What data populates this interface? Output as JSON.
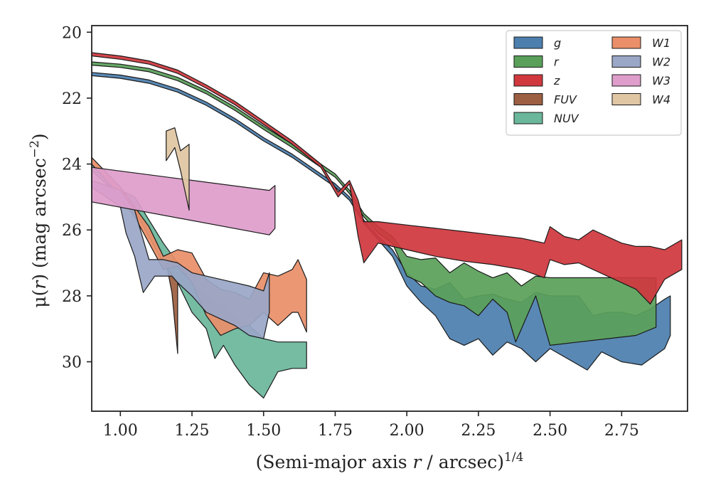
{
  "chart_data": {
    "type": "area",
    "xlabel": "(Semi-major axis r / arcsec)^1/4",
    "ylabel": "μ(r) (mag arcsec⁻²)",
    "xlabel_parts": {
      "before": "(Semi-major axis ",
      "var": "r",
      "after": " / arcsec)",
      "sup": "1/4"
    },
    "ylabel_parts": {
      "mu": "μ(",
      "var": "r",
      "after": ") (mag arcsec",
      "sup": "−2",
      "close": ")"
    },
    "xlim": [
      0.9,
      2.98
    ],
    "ylim": [
      31.5,
      19.8
    ],
    "y_inverted": true,
    "xticks": [
      1.0,
      1.25,
      1.5,
      1.75,
      2.0,
      2.25,
      2.5,
      2.75
    ],
    "xtick_labels": [
      "1.00",
      "1.25",
      "1.50",
      "1.75",
      "2.00",
      "2.25",
      "2.50",
      "2.75"
    ],
    "yticks": [
      20,
      22,
      24,
      26,
      28,
      30
    ],
    "ytick_labels": [
      "20",
      "22",
      "24",
      "26",
      "28",
      "30"
    ],
    "grid": false,
    "legend_position": "top-right",
    "legend_columns": 2,
    "series": [
      {
        "name": "g",
        "color": "#4c7fae",
        "upper": [
          [
            0.9,
            21.22
          ],
          [
            1.0,
            21.3
          ],
          [
            1.1,
            21.45
          ],
          [
            1.2,
            21.72
          ],
          [
            1.3,
            22.12
          ],
          [
            1.4,
            22.62
          ],
          [
            1.5,
            23.2
          ],
          [
            1.6,
            23.7
          ],
          [
            1.7,
            24.3
          ],
          [
            1.75,
            24.6
          ],
          [
            1.8,
            25.0
          ],
          [
            1.85,
            25.7
          ],
          [
            1.9,
            26.2
          ],
          [
            1.95,
            26.6
          ],
          [
            2.0,
            27.3
          ],
          [
            2.05,
            27.7
          ],
          [
            2.1,
            27.8
          ],
          [
            2.15,
            27.6
          ],
          [
            2.2,
            28.1
          ],
          [
            2.25,
            28.0
          ],
          [
            2.3,
            27.95
          ],
          [
            2.35,
            28.1
          ],
          [
            2.4,
            28.2
          ],
          [
            2.45,
            27.9
          ],
          [
            2.5,
            28.0
          ],
          [
            2.6,
            28.0
          ],
          [
            2.65,
            28.6
          ],
          [
            2.7,
            28.5
          ],
          [
            2.75,
            28.5
          ],
          [
            2.8,
            28.6
          ],
          [
            2.85,
            28.4
          ],
          [
            2.9,
            28.1
          ],
          [
            2.92,
            28.0
          ]
        ],
        "lower": [
          [
            0.9,
            21.32
          ],
          [
            1.0,
            21.4
          ],
          [
            1.1,
            21.55
          ],
          [
            1.2,
            21.82
          ],
          [
            1.3,
            22.22
          ],
          [
            1.4,
            22.72
          ],
          [
            1.5,
            23.3
          ],
          [
            1.6,
            23.8
          ],
          [
            1.7,
            24.4
          ],
          [
            1.75,
            24.7
          ],
          [
            1.8,
            25.1
          ],
          [
            1.85,
            25.8
          ],
          [
            1.9,
            26.3
          ],
          [
            1.95,
            26.8
          ],
          [
            2.0,
            27.7
          ],
          [
            2.05,
            28.2
          ],
          [
            2.1,
            28.6
          ],
          [
            2.15,
            29.3
          ],
          [
            2.2,
            29.5
          ],
          [
            2.25,
            29.3
          ],
          [
            2.3,
            29.8
          ],
          [
            2.35,
            29.4
          ],
          [
            2.4,
            29.6
          ],
          [
            2.45,
            30.0
          ],
          [
            2.5,
            29.6
          ],
          [
            2.6,
            30.1
          ],
          [
            2.63,
            30.25
          ],
          [
            2.68,
            29.7
          ],
          [
            2.75,
            30.0
          ],
          [
            2.82,
            30.1
          ],
          [
            2.9,
            29.6
          ],
          [
            2.92,
            29.2
          ]
        ]
      },
      {
        "name": "r",
        "color": "#5aa05a",
        "upper": [
          [
            0.9,
            20.9
          ],
          [
            1.0,
            20.97
          ],
          [
            1.1,
            21.1
          ],
          [
            1.2,
            21.37
          ],
          [
            1.3,
            21.77
          ],
          [
            1.4,
            22.27
          ],
          [
            1.5,
            22.85
          ],
          [
            1.6,
            23.4
          ],
          [
            1.7,
            24.0
          ],
          [
            1.75,
            24.3
          ],
          [
            1.8,
            24.8
          ],
          [
            1.85,
            25.5
          ],
          [
            1.9,
            25.9
          ],
          [
            1.95,
            26.2
          ],
          [
            2.0,
            26.8
          ],
          [
            2.05,
            26.9
          ],
          [
            2.1,
            26.85
          ],
          [
            2.15,
            27.3
          ],
          [
            2.2,
            27.0
          ],
          [
            2.25,
            27.25
          ],
          [
            2.3,
            27.45
          ],
          [
            2.35,
            27.3
          ],
          [
            2.4,
            27.7
          ],
          [
            2.45,
            27.4
          ],
          [
            2.5,
            27.45
          ],
          [
            2.6,
            27.45
          ],
          [
            2.7,
            27.45
          ],
          [
            2.8,
            27.45
          ],
          [
            2.87,
            27.45
          ]
        ],
        "lower": [
          [
            0.9,
            21.0
          ],
          [
            1.0,
            21.07
          ],
          [
            1.1,
            21.2
          ],
          [
            1.2,
            21.47
          ],
          [
            1.3,
            21.87
          ],
          [
            1.4,
            22.37
          ],
          [
            1.5,
            22.95
          ],
          [
            1.6,
            23.5
          ],
          [
            1.7,
            24.1
          ],
          [
            1.75,
            24.4
          ],
          [
            1.8,
            24.9
          ],
          [
            1.85,
            25.6
          ],
          [
            1.9,
            26.1
          ],
          [
            1.95,
            26.4
          ],
          [
            2.0,
            27.4
          ],
          [
            2.05,
            27.6
          ],
          [
            2.1,
            28.0
          ],
          [
            2.15,
            28.2
          ],
          [
            2.2,
            28.3
          ],
          [
            2.25,
            28.6
          ],
          [
            2.3,
            28.1
          ],
          [
            2.35,
            28.5
          ],
          [
            2.38,
            29.4
          ],
          [
            2.45,
            28.0
          ],
          [
            2.5,
            29.5
          ],
          [
            2.6,
            29.4
          ],
          [
            2.7,
            29.3
          ],
          [
            2.8,
            29.2
          ],
          [
            2.87,
            28.95
          ]
        ]
      },
      {
        "name": "z",
        "color": "#d0383e",
        "upper": [
          [
            0.9,
            20.62
          ],
          [
            1.0,
            20.72
          ],
          [
            1.1,
            20.87
          ],
          [
            1.2,
            21.15
          ],
          [
            1.3,
            21.6
          ],
          [
            1.4,
            22.1
          ],
          [
            1.5,
            22.7
          ],
          [
            1.6,
            23.3
          ],
          [
            1.7,
            24.0
          ],
          [
            1.76,
            24.85
          ],
          [
            1.8,
            24.5
          ],
          [
            1.83,
            25.1
          ],
          [
            1.85,
            25.75
          ],
          [
            1.9,
            25.75
          ],
          [
            2.0,
            25.85
          ],
          [
            2.1,
            25.95
          ],
          [
            2.2,
            26.05
          ],
          [
            2.3,
            26.15
          ],
          [
            2.4,
            26.25
          ],
          [
            2.48,
            26.4
          ],
          [
            2.5,
            25.9
          ],
          [
            2.55,
            26.2
          ],
          [
            2.6,
            26.3
          ],
          [
            2.65,
            26.0
          ],
          [
            2.7,
            26.2
          ],
          [
            2.75,
            26.4
          ],
          [
            2.8,
            26.5
          ],
          [
            2.85,
            26.5
          ],
          [
            2.9,
            26.6
          ],
          [
            2.96,
            26.3
          ]
        ],
        "lower": [
          [
            0.9,
            20.72
          ],
          [
            1.0,
            20.82
          ],
          [
            1.1,
            20.97
          ],
          [
            1.2,
            21.25
          ],
          [
            1.3,
            21.7
          ],
          [
            1.4,
            22.2
          ],
          [
            1.5,
            22.8
          ],
          [
            1.6,
            23.4
          ],
          [
            1.7,
            24.1
          ],
          [
            1.76,
            25.0
          ],
          [
            1.8,
            24.6
          ],
          [
            1.83,
            26.2
          ],
          [
            1.85,
            27.0
          ],
          [
            1.9,
            26.4
          ],
          [
            2.0,
            26.6
          ],
          [
            2.1,
            26.8
          ],
          [
            2.2,
            26.95
          ],
          [
            2.3,
            27.05
          ],
          [
            2.4,
            27.2
          ],
          [
            2.48,
            27.45
          ],
          [
            2.5,
            26.9
          ],
          [
            2.55,
            27.05
          ],
          [
            2.6,
            27.0
          ],
          [
            2.65,
            27.2
          ],
          [
            2.7,
            27.4
          ],
          [
            2.75,
            27.6
          ],
          [
            2.8,
            27.8
          ],
          [
            2.85,
            28.25
          ],
          [
            2.9,
            27.5
          ],
          [
            2.96,
            27.2
          ]
        ]
      },
      {
        "name": "FUV",
        "color": "#9c5f41",
        "upper": [
          [
            1.16,
            27.0
          ],
          [
            1.18,
            27.2
          ],
          [
            1.2,
            27.6
          ]
        ],
        "lower": [
          [
            1.16,
            27.0
          ],
          [
            1.18,
            27.9
          ],
          [
            1.2,
            29.75
          ]
        ]
      },
      {
        "name": "NUV",
        "color": "#6bb79b",
        "upper": [
          [
            0.9,
            24.0
          ],
          [
            1.0,
            24.8
          ],
          [
            1.05,
            25.0
          ],
          [
            1.1,
            25.7
          ],
          [
            1.15,
            26.4
          ],
          [
            1.2,
            27.0
          ],
          [
            1.25,
            27.6
          ],
          [
            1.3,
            28.0
          ],
          [
            1.35,
            28.3
          ],
          [
            1.4,
            28.6
          ],
          [
            1.45,
            28.9
          ],
          [
            1.5,
            29.3
          ],
          [
            1.55,
            29.4
          ],
          [
            1.6,
            29.4
          ],
          [
            1.65,
            29.4
          ]
        ],
        "lower": [
          [
            0.9,
            24.2
          ],
          [
            1.0,
            25.0
          ],
          [
            1.05,
            25.4
          ],
          [
            1.1,
            26.2
          ],
          [
            1.15,
            27.0
          ],
          [
            1.2,
            27.6
          ],
          [
            1.25,
            28.5
          ],
          [
            1.3,
            29.0
          ],
          [
            1.33,
            29.9
          ],
          [
            1.36,
            29.5
          ],
          [
            1.4,
            30.1
          ],
          [
            1.45,
            30.7
          ],
          [
            1.5,
            31.1
          ],
          [
            1.55,
            30.3
          ],
          [
            1.6,
            30.2
          ],
          [
            1.65,
            30.2
          ]
        ]
      },
      {
        "name": "W1",
        "color": "#ea8f69",
        "upper": [
          [
            0.9,
            23.8
          ],
          [
            1.0,
            24.7
          ],
          [
            1.05,
            25.3
          ],
          [
            1.1,
            25.9
          ],
          [
            1.15,
            26.8
          ],
          [
            1.2,
            26.6
          ],
          [
            1.25,
            26.7
          ],
          [
            1.3,
            27.5
          ],
          [
            1.35,
            27.8
          ],
          [
            1.4,
            27.9
          ],
          [
            1.45,
            28.1
          ],
          [
            1.5,
            27.3
          ],
          [
            1.55,
            27.4
          ],
          [
            1.6,
            27.2
          ],
          [
            1.62,
            26.9
          ],
          [
            1.65,
            27.5
          ]
        ],
        "lower": [
          [
            0.9,
            24.0
          ],
          [
            1.0,
            25.0
          ],
          [
            1.05,
            25.6
          ],
          [
            1.1,
            26.4
          ],
          [
            1.15,
            27.2
          ],
          [
            1.2,
            27.1
          ],
          [
            1.25,
            27.6
          ],
          [
            1.3,
            28.6
          ],
          [
            1.35,
            29.2
          ],
          [
            1.4,
            29.0
          ],
          [
            1.45,
            28.9
          ],
          [
            1.5,
            28.5
          ],
          [
            1.55,
            28.9
          ],
          [
            1.6,
            28.5
          ],
          [
            1.62,
            28.5
          ],
          [
            1.65,
            29.1
          ]
        ]
      },
      {
        "name": "W2",
        "color": "#9aa7c7",
        "upper": [
          [
            0.9,
            24.5
          ],
          [
            1.0,
            24.8
          ],
          [
            1.05,
            25.4
          ],
          [
            1.1,
            26.9
          ],
          [
            1.15,
            26.9
          ],
          [
            1.2,
            27.0
          ],
          [
            1.25,
            27.3
          ],
          [
            1.3,
            27.4
          ],
          [
            1.35,
            27.5
          ],
          [
            1.4,
            27.6
          ],
          [
            1.45,
            27.7
          ],
          [
            1.5,
            27.85
          ],
          [
            1.52,
            27.3
          ]
        ],
        "lower": [
          [
            0.9,
            24.7
          ],
          [
            1.0,
            25.3
          ],
          [
            1.02,
            26.1
          ],
          [
            1.05,
            26.8
          ],
          [
            1.08,
            27.9
          ],
          [
            1.12,
            27.4
          ],
          [
            1.18,
            27.4
          ],
          [
            1.2,
            27.6
          ],
          [
            1.25,
            28.0
          ],
          [
            1.3,
            28.5
          ],
          [
            1.35,
            28.7
          ],
          [
            1.4,
            28.9
          ],
          [
            1.45,
            29.2
          ],
          [
            1.5,
            29.3
          ],
          [
            1.52,
            28.5
          ]
        ]
      },
      {
        "name": "W3",
        "color": "#de9dcb",
        "upper": [
          [
            0.9,
            24.1
          ],
          [
            1.52,
            24.8
          ],
          [
            1.54,
            24.65
          ]
        ],
        "lower": [
          [
            0.9,
            25.15
          ],
          [
            1.52,
            26.15
          ],
          [
            1.54,
            25.95
          ]
        ]
      },
      {
        "name": "W4",
        "color": "#e0c6a3",
        "upper": [
          [
            1.16,
            23.0
          ],
          [
            1.19,
            22.9
          ],
          [
            1.21,
            23.6
          ],
          [
            1.24,
            23.4
          ]
        ],
        "lower": [
          [
            1.16,
            23.9
          ],
          [
            1.19,
            23.5
          ],
          [
            1.21,
            24.2
          ],
          [
            1.24,
            25.4
          ]
        ]
      }
    ]
  }
}
